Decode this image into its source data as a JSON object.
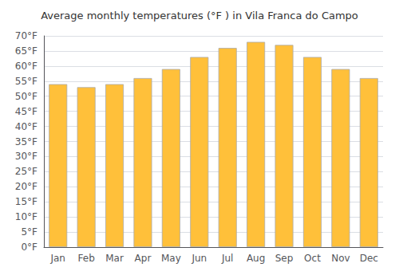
{
  "chart_data": {
    "type": "bar",
    "title": "Average monthly temperatures (°F ) in Vila Franca do Campo",
    "categories": [
      "Jan",
      "Feb",
      "Mar",
      "Apr",
      "May",
      "Jun",
      "Jul",
      "Aug",
      "Sep",
      "Oct",
      "Nov",
      "Dec"
    ],
    "values": [
      54,
      53,
      54,
      56,
      59,
      63,
      66,
      68,
      67,
      63,
      59,
      56
    ],
    "color": "#FFC03A",
    "ylim": [
      0,
      70
    ],
    "yticks": [
      {
        "value": 0,
        "label": "0°F"
      },
      {
        "value": 5,
        "label": "5°F"
      },
      {
        "value": 10,
        "label": "10°F"
      },
      {
        "value": 15,
        "label": "15°F"
      },
      {
        "value": 20,
        "label": "20°F"
      },
      {
        "value": 25,
        "label": "25°F"
      },
      {
        "value": 30,
        "label": "30°F"
      },
      {
        "value": 35,
        "label": "35°F"
      },
      {
        "value": 40,
        "label": "40°F"
      },
      {
        "value": 45,
        "label": "45°F"
      },
      {
        "value": 50,
        "label": "50°F"
      },
      {
        "value": 55,
        "label": "55°F"
      },
      {
        "value": 60,
        "label": "60°F"
      },
      {
        "value": 65,
        "label": "65°F"
      },
      {
        "value": 70,
        "label": "70°F"
      }
    ],
    "grid": true
  }
}
